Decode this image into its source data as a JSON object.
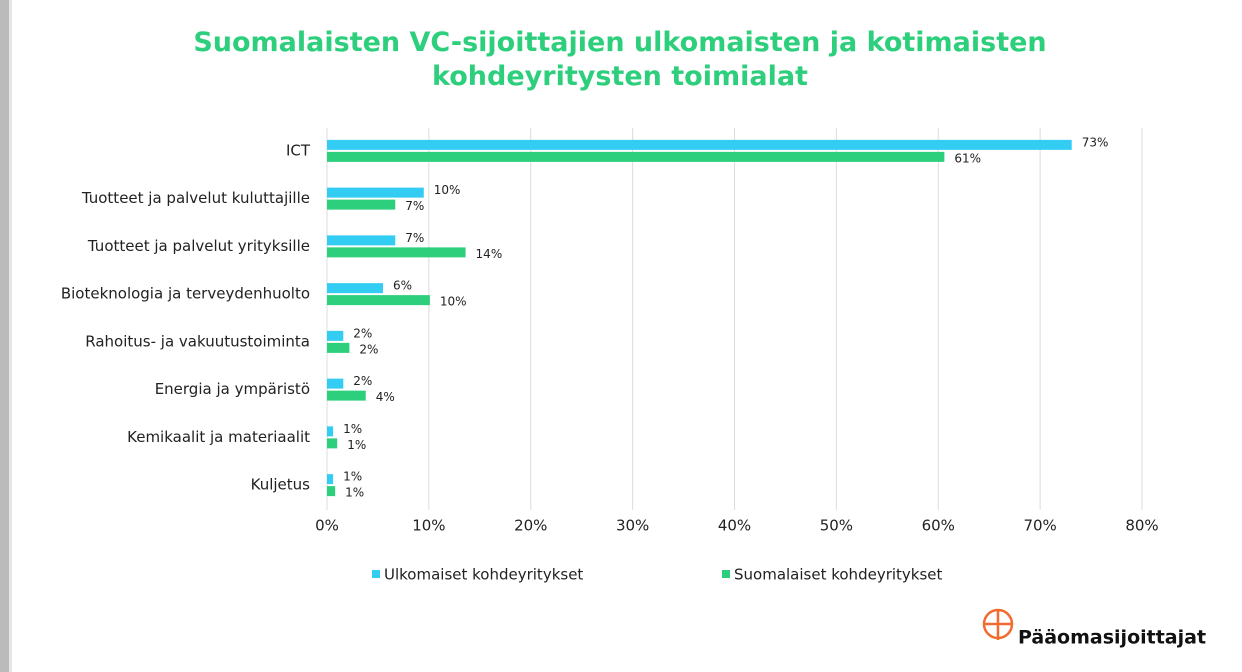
{
  "chart_data": {
    "type": "hbar",
    "title": "Suomalaisten VC-sijoittajien ulkomaisten ja kotimaisten kohdeyritysten toimialat",
    "categories": [
      "ICT",
      "Tuotteet ja palvelut kuluttajille",
      "Tuotteet ja palvelut yrityksille",
      "Bioteknologia ja terveydenhuolto",
      "Rahoitus- ja vakuutustoiminta",
      "Energia ja ympäristö",
      "Kemikaalit ja materiaalit",
      "Kuljetus"
    ],
    "series": [
      {
        "name": "Ulkomaiset kohdeyritykset",
        "color": "#33ccf2",
        "values": [
          73.1,
          9.5,
          6.7,
          5.5,
          1.6,
          1.6,
          0.6,
          0.6
        ],
        "value_labels": [
          "73%",
          "10%",
          "7%",
          "6%",
          "2%",
          "2%",
          "1%",
          "1%"
        ]
      },
      {
        "name": "Suomalaiset kohdeyritykset",
        "color": "#2dcf7c",
        "values": [
          60.6,
          6.7,
          13.6,
          10.1,
          2.2,
          3.8,
          1.0,
          0.8
        ],
        "value_labels": [
          "61%",
          "7%",
          "14%",
          "10%",
          "2%",
          "4%",
          "1%",
          "1%"
        ]
      }
    ],
    "xlim": [
      0,
      80
    ],
    "xticks": [
      {
        "value": 0,
        "label": "0%"
      },
      {
        "value": 10,
        "label": "10%"
      },
      {
        "value": 20,
        "label": "20%"
      },
      {
        "value": 30,
        "label": "30%"
      },
      {
        "value": 40,
        "label": "40%"
      },
      {
        "value": 50,
        "label": "50%"
      },
      {
        "value": 60,
        "label": "60%"
      },
      {
        "value": 70,
        "label": "70%"
      },
      {
        "value": 80,
        "label": "80%"
      }
    ],
    "grid": true,
    "legend": "bottom"
  },
  "logo": "Pääomasijoittajat"
}
